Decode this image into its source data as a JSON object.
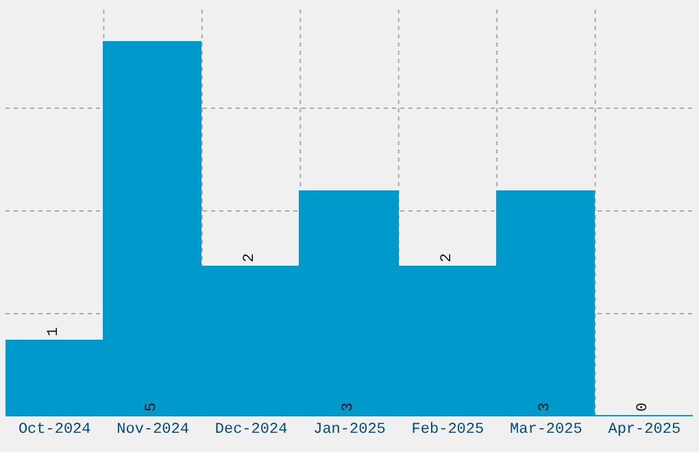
{
  "chart_data": {
    "type": "bar",
    "categories": [
      "Oct-2024",
      "Nov-2024",
      "Dec-2024",
      "Jan-2025",
      "Feb-2025",
      "Mar-2025",
      "Apr-2025"
    ],
    "values": [
      1,
      5,
      2,
      3,
      2,
      3,
      0
    ],
    "color": "#0099cc",
    "ylim": [
      0,
      5.5
    ],
    "yticks": [
      {
        "value": 1.375,
        "label": null
      },
      {
        "value": 2.75,
        "label": null
      },
      {
        "value": 4.125,
        "label": null
      }
    ],
    "tick_labels": "x",
    "grid": true,
    "data_labels": true,
    "legend": false
  }
}
